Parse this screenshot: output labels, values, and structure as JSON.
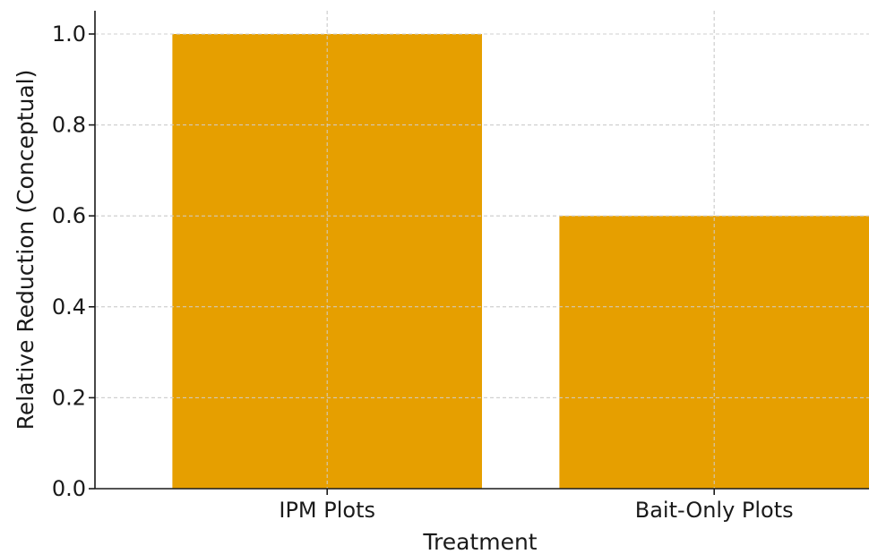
{
  "chart_data": {
    "type": "bar",
    "title": "",
    "xlabel": "Treatment",
    "ylabel": "Relative Reduction (Conceptual)",
    "categories": [
      "IPM Plots",
      "Bait-Only Plots"
    ],
    "values": [
      1.0,
      0.6
    ],
    "ylim": [
      0,
      1.05
    ],
    "yticks": [
      0.0,
      0.2,
      0.4,
      0.6,
      0.8,
      1.0
    ],
    "ytick_labels": [
      "0.0",
      "0.2",
      "0.4",
      "0.6",
      "0.8",
      "1.0"
    ],
    "grid": true,
    "bar_color": "#E69F00"
  }
}
